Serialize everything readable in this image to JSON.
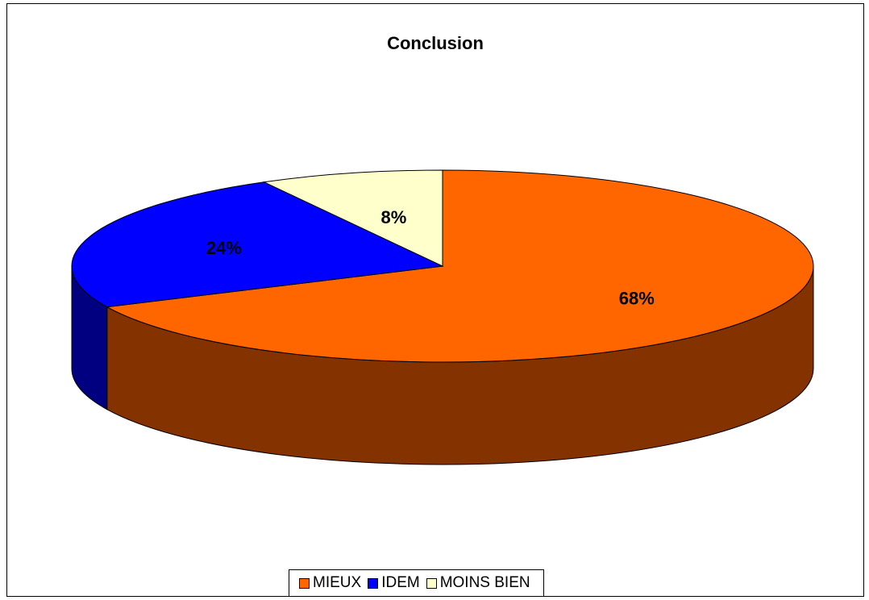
{
  "chart_data": {
    "type": "pie",
    "title": "Conclusion",
    "categories": [
      "MIEUX",
      "IDEM",
      "MOINS BIEN"
    ],
    "values": [
      68,
      24,
      8
    ],
    "labels": [
      "68%",
      "24%",
      "8%"
    ],
    "colors": [
      "#ff6600",
      "#0000ff",
      "#ffffcc"
    ],
    "side_colors": [
      "#843300",
      "#000080",
      "#a8a880"
    ],
    "legend_position": "bottom"
  }
}
